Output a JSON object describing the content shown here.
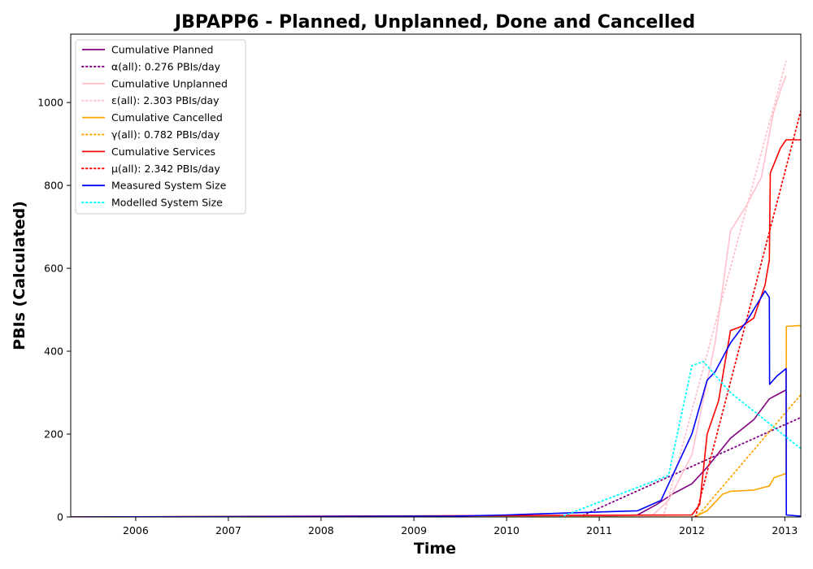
{
  "chart_data": {
    "type": "line",
    "title": "JBPAPP6 - Planned, Unplanned, Done  and Cancelled",
    "xlabel": "Time",
    "ylabel": "PBIs (Calculated)",
    "xlim": [
      "2005-04-20",
      "2013-03-05"
    ],
    "ylim": [
      0,
      1165
    ],
    "x_ticks": [
      "2006",
      "2007",
      "2008",
      "2009",
      "2010",
      "2011",
      "2012",
      "2013"
    ],
    "y_ticks": [
      0,
      200,
      400,
      600,
      800,
      1000
    ],
    "grid": false,
    "legend_position": "top-left",
    "series": [
      {
        "name": "Cumulative Planned",
        "style": "solid",
        "color": "#800080",
        "points": [
          [
            "2005-04-20",
            0
          ],
          [
            "2010-10-01",
            0
          ],
          [
            "2011-06-01",
            5
          ],
          [
            "2011-08-15",
            30
          ],
          [
            "2011-10-15",
            55
          ],
          [
            "2012-01-01",
            80
          ],
          [
            "2012-03-01",
            120
          ],
          [
            "2012-06-01",
            190
          ],
          [
            "2012-09-01",
            235
          ],
          [
            "2012-11-01",
            285
          ],
          [
            "2013-01-01",
            305
          ],
          [
            "2013-01-06",
            307
          ]
        ]
      },
      {
        "name": "α(all): 0.276 PBIs/day",
        "style": "dotted",
        "color": "#800080",
        "points": [
          [
            "2010-10-15",
            0
          ],
          [
            "2013-03-05",
            240
          ]
        ]
      },
      {
        "name": "Cumulative Unplanned",
        "style": "solid",
        "color": "#ffc0cb",
        "points": [
          [
            "2005-04-20",
            0
          ],
          [
            "2010-06-01",
            0
          ],
          [
            "2011-08-01",
            5
          ],
          [
            "2011-10-01",
            40
          ],
          [
            "2012-01-01",
            150
          ],
          [
            "2012-04-01",
            420
          ],
          [
            "2012-06-01",
            690
          ],
          [
            "2012-08-01",
            750
          ],
          [
            "2012-10-01",
            820
          ],
          [
            "2012-11-15",
            970
          ],
          [
            "2012-12-15",
            1030
          ],
          [
            "2013-01-06",
            1065
          ]
        ]
      },
      {
        "name": "ε(all): 2.303 PBIs/day",
        "style": "dotted",
        "color": "#ffc0cb",
        "points": [
          [
            "2011-09-10",
            0
          ],
          [
            "2013-01-06",
            1100
          ]
        ]
      },
      {
        "name": "Cumulative Cancelled",
        "style": "solid",
        "color": "#ffa500",
        "points": [
          [
            "2005-04-20",
            0
          ],
          [
            "2012-01-10",
            0
          ],
          [
            "2012-03-01",
            15
          ],
          [
            "2012-05-01",
            55
          ],
          [
            "2012-06-01",
            62
          ],
          [
            "2012-09-01",
            65
          ],
          [
            "2012-11-01",
            75
          ],
          [
            "2012-11-20",
            95
          ],
          [
            "2013-01-06",
            105
          ],
          [
            "2013-01-07",
            460
          ],
          [
            "2013-03-05",
            462
          ]
        ]
      },
      {
        "name": "γ(all): 0.782 PBIs/day",
        "style": "dotted",
        "color": "#ffa500",
        "points": [
          [
            "2012-01-20",
            0
          ],
          [
            "2013-03-05",
            295
          ]
        ]
      },
      {
        "name": "Cumulative Services",
        "style": "solid",
        "color": "#ff0000",
        "points": [
          [
            "2005-04-20",
            0
          ],
          [
            "2012-01-01",
            5
          ],
          [
            "2012-02-01",
            30
          ],
          [
            "2012-03-01",
            200
          ],
          [
            "2012-04-15",
            280
          ],
          [
            "2012-06-01",
            450
          ],
          [
            "2012-07-15",
            460
          ],
          [
            "2012-09-01",
            480
          ],
          [
            "2012-10-15",
            560
          ],
          [
            "2012-11-01",
            620
          ],
          [
            "2012-11-05",
            830
          ],
          [
            "2012-12-15",
            890
          ],
          [
            "2013-01-06",
            910
          ],
          [
            "2013-03-05",
            910
          ]
        ]
      },
      {
        "name": "μ(all): 2.342 PBIs/day",
        "style": "dotted",
        "color": "#ff0000",
        "points": [
          [
            "2012-01-15",
            0
          ],
          [
            "2013-03-05",
            980
          ]
        ]
      },
      {
        "name": "Measured System Size",
        "style": "solid",
        "color": "#0000ff",
        "points": [
          [
            "2005-04-20",
            0
          ],
          [
            "2009-06-01",
            2
          ],
          [
            "2010-01-01",
            5
          ],
          [
            "2010-06-01",
            8
          ],
          [
            "2011-06-01",
            15
          ],
          [
            "2011-09-01",
            40
          ],
          [
            "2011-11-01",
            120
          ],
          [
            "2012-01-01",
            200
          ],
          [
            "2012-03-01",
            330
          ],
          [
            "2012-04-01",
            350
          ],
          [
            "2012-06-01",
            420
          ],
          [
            "2012-08-01",
            470
          ],
          [
            "2012-10-15",
            545
          ],
          [
            "2012-11-01",
            530
          ],
          [
            "2012-11-02",
            320
          ],
          [
            "2012-12-01",
            340
          ],
          [
            "2013-01-06",
            358
          ],
          [
            "2013-01-07",
            5
          ],
          [
            "2013-03-05",
            2
          ]
        ]
      },
      {
        "name": "Modelled System Size",
        "style": "dotted",
        "color": "#00ffff",
        "points": [
          [
            "2010-08-01",
            0
          ],
          [
            "2011-10-01",
            100
          ],
          [
            "2012-01-01",
            365
          ],
          [
            "2012-02-15",
            375
          ],
          [
            "2012-06-01",
            300
          ],
          [
            "2013-03-05",
            165
          ]
        ]
      }
    ]
  }
}
